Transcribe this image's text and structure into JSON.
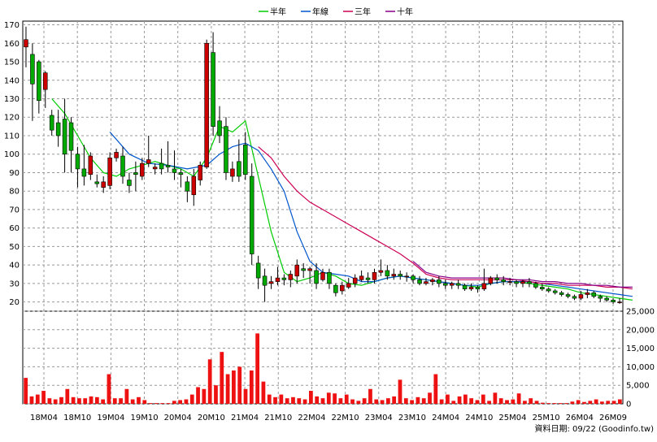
{
  "legend": {
    "items": [
      {
        "name": "半年",
        "color": "#00cc00"
      },
      {
        "name": "年線",
        "color": "#0055cc"
      },
      {
        "name": "三年",
        "color": "#cc0055"
      },
      {
        "name": "十年",
        "color": "#880088"
      }
    ],
    "placement": "top-center"
  },
  "footer": {
    "date_note": "資料日期: 09/22 (Goodinfo.tw)"
  },
  "colors": {
    "up": "#cc0000",
    "down": "#00aa00",
    "volume": "#ee1111",
    "grid": "#999999",
    "border": "#000000"
  },
  "chart_data": [
    {
      "type": "candlestick",
      "title": "",
      "grid": true,
      "ylim": [
        15,
        172
      ],
      "yticks": [
        20,
        30,
        40,
        50,
        60,
        70,
        80,
        90,
        100,
        110,
        120,
        130,
        140,
        150,
        160,
        170
      ],
      "xlabels": [
        "18M04",
        "18M10",
        "19M04",
        "19M10",
        "20M04",
        "20M10",
        "21M04",
        "21M10",
        "22M04",
        "22M10",
        "23M04",
        "23M10",
        "24M04",
        "24M10",
        "25M04",
        "25M10",
        "26M04",
        "26M09"
      ],
      "candles": [
        [
          158,
          162,
          169,
          147
        ],
        [
          154,
          138,
          160,
          118
        ],
        [
          150,
          129,
          151,
          122
        ],
        [
          135,
          144,
          145,
          125
        ],
        [
          121,
          113,
          124,
          110
        ],
        [
          117,
          110,
          124,
          104
        ],
        [
          119,
          100,
          130,
          90
        ],
        [
          117,
          102,
          120,
          90
        ],
        [
          100,
          92,
          104,
          82
        ],
        [
          92,
          88,
          105,
          83
        ],
        [
          89,
          99,
          101,
          86
        ],
        [
          85,
          84,
          89,
          82
        ],
        [
          82,
          85,
          88,
          79
        ],
        [
          83,
          98,
          101,
          81
        ],
        [
          98,
          101,
          103,
          96
        ],
        [
          99,
          88,
          104,
          84
        ],
        [
          86,
          83,
          90,
          79
        ],
        [
          90,
          89,
          96,
          80
        ],
        [
          88,
          95,
          98,
          86
        ],
        [
          95,
          97,
          110,
          93
        ],
        [
          92,
          93,
          95,
          89
        ],
        [
          95,
          92,
          103,
          89
        ],
        [
          94,
          93,
          107,
          90
        ],
        [
          92,
          90,
          102,
          86
        ],
        [
          90,
          89,
          92,
          82
        ],
        [
          85,
          80,
          88,
          74
        ],
        [
          78,
          88,
          92,
          72
        ],
        [
          86,
          94,
          96,
          83
        ],
        [
          93,
          160,
          162,
          92
        ],
        [
          155,
          115,
          166,
          110
        ],
        [
          118,
          110,
          126,
          106
        ],
        [
          115,
          90,
          120,
          86
        ],
        [
          88,
          92,
          96,
          85
        ],
        [
          96,
          88,
          108,
          85
        ],
        [
          105,
          89,
          112,
          86
        ],
        [
          88,
          46,
          95,
          40
        ],
        [
          41,
          33,
          45,
          27
        ],
        [
          34,
          29,
          38,
          20
        ],
        [
          30,
          31,
          34,
          27
        ],
        [
          31,
          33,
          39,
          29
        ],
        [
          33,
          32,
          35,
          29
        ],
        [
          32,
          35,
          37,
          28
        ],
        [
          34,
          40,
          43,
          30
        ],
        [
          38,
          37,
          41,
          33
        ],
        [
          37,
          38,
          39,
          30
        ],
        [
          37,
          30,
          41,
          27
        ],
        [
          32,
          36,
          38,
          31
        ],
        [
          36,
          30,
          38,
          27
        ],
        [
          29,
          25,
          30,
          23
        ],
        [
          26,
          29,
          31,
          24
        ],
        [
          28,
          30,
          33,
          27
        ],
        [
          30,
          33,
          35,
          28
        ],
        [
          32,
          34,
          37,
          31
        ],
        [
          33,
          32,
          36,
          30
        ],
        [
          32,
          36,
          38,
          30
        ],
        [
          36,
          37,
          43,
          34
        ],
        [
          37,
          34,
          40,
          32
        ],
        [
          34,
          35,
          38,
          32
        ],
        [
          35,
          34,
          37,
          32
        ],
        [
          34,
          34,
          36,
          31
        ],
        [
          34,
          32,
          35,
          30
        ],
        [
          32,
          30,
          34,
          29
        ],
        [
          30,
          31,
          33,
          29
        ],
        [
          31,
          32,
          33,
          29
        ],
        [
          32,
          30,
          34,
          28
        ],
        [
          30,
          29,
          32,
          27
        ],
        [
          29,
          30,
          31,
          27
        ],
        [
          30,
          29,
          32,
          27
        ],
        [
          29,
          27,
          30,
          26
        ],
        [
          27,
          28,
          30,
          26
        ],
        [
          28,
          27,
          29,
          25
        ],
        [
          27,
          30,
          38,
          26
        ],
        [
          30,
          33,
          34,
          29
        ],
        [
          33,
          32,
          35,
          30
        ],
        [
          32,
          31,
          34,
          29
        ],
        [
          31,
          31,
          33,
          29
        ],
        [
          31,
          30,
          32,
          28
        ],
        [
          30,
          31,
          32,
          28
        ],
        [
          31,
          30,
          33,
          28
        ],
        [
          30,
          28,
          31,
          27
        ],
        [
          28,
          27,
          30,
          26
        ],
        [
          27,
          26,
          28,
          25
        ],
        [
          26,
          25,
          27,
          24
        ],
        [
          25,
          24,
          26,
          23
        ],
        [
          24,
          23,
          25,
          22
        ],
        [
          23,
          22,
          24,
          21
        ],
        [
          22,
          24,
          26,
          21
        ],
        [
          24,
          25,
          27,
          22
        ],
        [
          25,
          23,
          26,
          22
        ],
        [
          23,
          22,
          24,
          20
        ],
        [
          22,
          21,
          23,
          20
        ],
        [
          21,
          20,
          22,
          19
        ],
        [
          20,
          20,
          22,
          19
        ]
      ],
      "series": [
        {
          "name": "半年",
          "color": "#00cc00",
          "points": [
            [
              4,
              130
            ],
            [
              6,
              122
            ],
            [
              8,
              110
            ],
            [
              10,
              98
            ],
            [
              12,
              90
            ],
            [
              14,
              88
            ],
            [
              16,
              92
            ],
            [
              18,
              94
            ],
            [
              20,
              96
            ],
            [
              22,
              94
            ],
            [
              24,
              92
            ],
            [
              26,
              88
            ],
            [
              28,
              98
            ],
            [
              30,
              115
            ],
            [
              32,
              112
            ],
            [
              34,
              118
            ],
            [
              36,
              88
            ],
            [
              38,
              58
            ],
            [
              40,
              36
            ],
            [
              42,
              31
            ],
            [
              44,
              33
            ],
            [
              46,
              36
            ],
            [
              48,
              34
            ],
            [
              50,
              30
            ],
            [
              52,
              29
            ],
            [
              54,
              31
            ],
            [
              56,
              33
            ],
            [
              58,
              34
            ],
            [
              60,
              33
            ],
            [
              62,
              32
            ],
            [
              64,
              31
            ],
            [
              66,
              30
            ],
            [
              68,
              29
            ],
            [
              70,
              28
            ],
            [
              72,
              30
            ],
            [
              74,
              31
            ],
            [
              76,
              31
            ],
            [
              78,
              30
            ],
            [
              80,
              29
            ],
            [
              82,
              28
            ],
            [
              84,
              27
            ],
            [
              86,
              25
            ],
            [
              88,
              24
            ],
            [
              90,
              23
            ],
            [
              92,
              22
            ],
            [
              94,
              21
            ]
          ]
        },
        {
          "name": "年線",
          "color": "#0055cc",
          "points": [
            [
              13,
              112
            ],
            [
              16,
              100
            ],
            [
              19,
              95
            ],
            [
              22,
              94
            ],
            [
              25,
              92
            ],
            [
              28,
              94
            ],
            [
              30,
              100
            ],
            [
              32,
              104
            ],
            [
              34,
              106
            ],
            [
              36,
              102
            ],
            [
              38,
              92
            ],
            [
              40,
              80
            ],
            [
              42,
              58
            ],
            [
              44,
              42
            ],
            [
              46,
              36
            ],
            [
              48,
              35
            ],
            [
              50,
              34
            ],
            [
              52,
              31
            ],
            [
              54,
              31
            ],
            [
              56,
              33
            ],
            [
              58,
              34
            ],
            [
              60,
              33
            ],
            [
              62,
              32
            ],
            [
              64,
              31
            ],
            [
              66,
              30
            ],
            [
              68,
              29
            ],
            [
              70,
              29
            ],
            [
              72,
              30
            ],
            [
              74,
              31
            ],
            [
              76,
              31
            ],
            [
              78,
              31
            ],
            [
              80,
              30
            ],
            [
              82,
              29
            ],
            [
              84,
              28
            ],
            [
              86,
              27
            ],
            [
              88,
              26
            ],
            [
              90,
              25
            ],
            [
              92,
              24
            ],
            [
              94,
              23
            ]
          ]
        },
        {
          "name": "三年",
          "color": "#cc0055",
          "points": [
            [
              36,
              104
            ],
            [
              38,
              98
            ],
            [
              40,
              88
            ],
            [
              42,
              80
            ],
            [
              44,
              74
            ],
            [
              46,
              70
            ],
            [
              48,
              66
            ],
            [
              50,
              62
            ],
            [
              52,
              58
            ],
            [
              54,
              54
            ],
            [
              56,
              50
            ],
            [
              58,
              46
            ],
            [
              60,
              41
            ],
            [
              62,
              35
            ],
            [
              64,
              33
            ],
            [
              66,
              32
            ],
            [
              68,
              32
            ],
            [
              70,
              32
            ],
            [
              72,
              32
            ],
            [
              74,
              32
            ],
            [
              76,
              32
            ],
            [
              78,
              31
            ],
            [
              80,
              30
            ],
            [
              82,
              30
            ],
            [
              84,
              29
            ],
            [
              86,
              29
            ],
            [
              88,
              29
            ],
            [
              90,
              28
            ],
            [
              92,
              28
            ],
            [
              94,
              27
            ]
          ]
        },
        {
          "name": "十年",
          "color": "#880088",
          "points": [
            [
              60,
              42
            ],
            [
              62,
              36
            ],
            [
              64,
              34
            ],
            [
              66,
              33
            ],
            [
              68,
              33
            ],
            [
              70,
              33
            ],
            [
              72,
              33
            ],
            [
              74,
              33
            ],
            [
              76,
              32
            ],
            [
              78,
              32
            ],
            [
              80,
              31
            ],
            [
              82,
              31
            ],
            [
              84,
              30
            ],
            [
              86,
              30
            ],
            [
              88,
              29
            ],
            [
              90,
              29
            ],
            [
              92,
              28
            ],
            [
              94,
              28
            ]
          ]
        }
      ]
    },
    {
      "type": "bar",
      "title": "",
      "grid": true,
      "ylim": [
        0,
        25000
      ],
      "yticks": [
        "0",
        "5,000",
        "10,000",
        "15,000",
        "20,000",
        "25,000"
      ],
      "values": [
        7000,
        2000,
        2500,
        3500,
        1500,
        1200,
        1800,
        4000,
        1800,
        1500,
        1500,
        2000,
        1800,
        1200,
        8000,
        1500,
        1500,
        4000,
        1200,
        1800,
        1000,
        200,
        200,
        200,
        200,
        800,
        1000,
        1200,
        2500,
        4500,
        4000,
        12000,
        5000,
        14000,
        8000,
        9000,
        10000,
        4000,
        9000,
        19000,
        6000,
        2500,
        1800,
        2500,
        1500,
        1800,
        1500,
        1200,
        3500,
        2000,
        1500,
        3000,
        2800,
        1500,
        2500,
        1200,
        800,
        1500,
        4000,
        1200,
        1000,
        1500,
        2000,
        6500,
        1500,
        1000,
        1800,
        1500,
        3000,
        8000,
        1200,
        2500,
        800,
        2000,
        2500,
        1500,
        1000,
        2500,
        800,
        3000,
        1500,
        1000,
        1200,
        2800,
        800,
        1500,
        800,
        300,
        200,
        200,
        200,
        200,
        600,
        1000,
        500,
        800,
        1200,
        600,
        800,
        800,
        1200
      ]
    }
  ]
}
